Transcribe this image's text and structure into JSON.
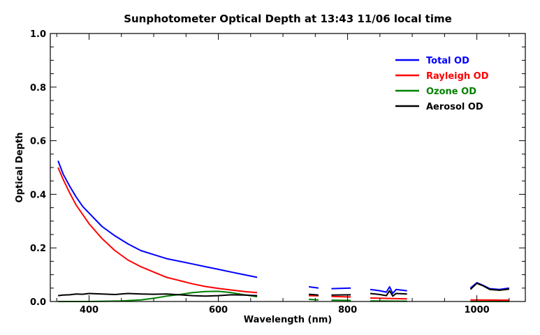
{
  "chart_data": {
    "type": "line",
    "title": "Sunphotometer Optical Depth at 13:43  11/06 local time",
    "xlabel": "Wavelength (nm)",
    "ylabel": "Optical Depth",
    "xlim": [
      340,
      1075
    ],
    "ylim": [
      0.0,
      1.0
    ],
    "xticks": [
      400,
      600,
      800,
      1000
    ],
    "xtick_labels": [
      "400",
      "600",
      "800",
      "1000"
    ],
    "yticks": [
      0.0,
      0.2,
      0.4,
      0.6,
      0.8,
      1.0
    ],
    "ytick_labels": [
      "0.0",
      "0.2",
      "0.4",
      "0.6",
      "0.8",
      "1.0"
    ],
    "legend_position": "top-right",
    "series": [
      {
        "name": "Total OD",
        "color": "#0000ff",
        "style": "solid",
        "segments": [
          [
            [
              352,
              0.525
            ],
            [
              360,
              0.475
            ],
            [
              370,
              0.43
            ],
            [
              380,
              0.39
            ],
            [
              390,
              0.355
            ],
            [
              400,
              0.33
            ],
            [
              420,
              0.28
            ],
            [
              440,
              0.245
            ],
            [
              460,
              0.215
            ],
            [
              480,
              0.19
            ],
            [
              500,
              0.175
            ],
            [
              520,
              0.16
            ],
            [
              540,
              0.15
            ],
            [
              560,
              0.14
            ],
            [
              580,
              0.13
            ],
            [
              600,
              0.12
            ],
            [
              620,
              0.11
            ],
            [
              640,
              0.1
            ],
            [
              660,
              0.09
            ]
          ],
          [
            [
              740,
              0.055
            ],
            [
              755,
              0.05
            ]
          ],
          [
            [
              775,
              0.048
            ],
            [
              805,
              0.05
            ]
          ],
          [
            [
              835,
              0.045
            ],
            [
              850,
              0.04
            ],
            [
              860,
              0.035
            ],
            [
              865,
              0.055
            ],
            [
              870,
              0.03
            ],
            [
              875,
              0.045
            ],
            [
              892,
              0.04
            ]
          ],
          [
            [
              990,
              0.05
            ],
            [
              1000,
              0.07
            ],
            [
              1010,
              0.06
            ],
            [
              1020,
              0.048
            ],
            [
              1035,
              0.045
            ],
            [
              1050,
              0.05
            ]
          ]
        ]
      },
      {
        "name": "Rayleigh OD",
        "color": "#ff0000",
        "style": "solid",
        "segments": [
          [
            [
              352,
              0.5
            ],
            [
              360,
              0.455
            ],
            [
              370,
              0.405
            ],
            [
              380,
              0.36
            ],
            [
              390,
              0.325
            ],
            [
              400,
              0.29
            ],
            [
              420,
              0.235
            ],
            [
              440,
              0.19
            ],
            [
              460,
              0.155
            ],
            [
              480,
              0.13
            ],
            [
              500,
              0.11
            ],
            [
              520,
              0.09
            ],
            [
              540,
              0.078
            ],
            [
              560,
              0.066
            ],
            [
              580,
              0.056
            ],
            [
              600,
              0.049
            ],
            [
              620,
              0.043
            ],
            [
              640,
              0.037
            ],
            [
              660,
              0.033
            ]
          ],
          [
            [
              740,
              0.022
            ],
            [
              755,
              0.021
            ]
          ],
          [
            [
              775,
              0.019
            ],
            [
              805,
              0.017
            ]
          ],
          [
            [
              835,
              0.013
            ],
            [
              892,
              0.01
            ]
          ],
          [
            [
              990,
              0.006
            ],
            [
              1050,
              0.005
            ]
          ]
        ]
      },
      {
        "name": "Ozone OD",
        "color": "#008000",
        "style": "solid",
        "segments": [
          [
            [
              352,
              0.0
            ],
            [
              400,
              0.0
            ],
            [
              450,
              0.002
            ],
            [
              480,
              0.006
            ],
            [
              500,
              0.012
            ],
            [
              520,
              0.02
            ],
            [
              540,
              0.026
            ],
            [
              560,
              0.033
            ],
            [
              580,
              0.037
            ],
            [
              600,
              0.038
            ],
            [
              620,
              0.033
            ],
            [
              640,
              0.025
            ],
            [
              660,
              0.018
            ]
          ],
          [
            [
              740,
              0.008
            ],
            [
              755,
              0.006
            ]
          ],
          [
            [
              775,
              0.005
            ],
            [
              805,
              0.004
            ]
          ],
          [
            [
              835,
              0.002
            ],
            [
              892,
              0.001
            ]
          ],
          [
            [
              990,
              0.0
            ],
            [
              1050,
              0.0
            ]
          ]
        ]
      },
      {
        "name": "Aerosol OD",
        "color": "#000000",
        "style": "solid",
        "segments": [
          [
            [
              352,
              0.022
            ],
            [
              360,
              0.024
            ],
            [
              370,
              0.025
            ],
            [
              380,
              0.028
            ],
            [
              390,
              0.027
            ],
            [
              400,
              0.03
            ],
            [
              420,
              0.028
            ],
            [
              440,
              0.026
            ],
            [
              460,
              0.03
            ],
            [
              480,
              0.028
            ],
            [
              500,
              0.027
            ],
            [
              520,
              0.028
            ],
            [
              540,
              0.025
            ],
            [
              560,
              0.022
            ],
            [
              580,
              0.02
            ],
            [
              600,
              0.022
            ],
            [
              620,
              0.025
            ],
            [
              640,
              0.024
            ],
            [
              660,
              0.022
            ]
          ],
          [
            [
              740,
              0.027
            ],
            [
              755,
              0.024
            ]
          ],
          [
            [
              775,
              0.024
            ],
            [
              805,
              0.025
            ]
          ],
          [
            [
              835,
              0.03
            ],
            [
              850,
              0.026
            ],
            [
              860,
              0.022
            ],
            [
              865,
              0.04
            ],
            [
              870,
              0.02
            ],
            [
              875,
              0.03
            ],
            [
              892,
              0.028
            ]
          ],
          [
            [
              990,
              0.045
            ],
            [
              1000,
              0.068
            ],
            [
              1010,
              0.058
            ],
            [
              1020,
              0.045
            ],
            [
              1035,
              0.042
            ],
            [
              1050,
              0.046
            ]
          ]
        ]
      }
    ]
  }
}
